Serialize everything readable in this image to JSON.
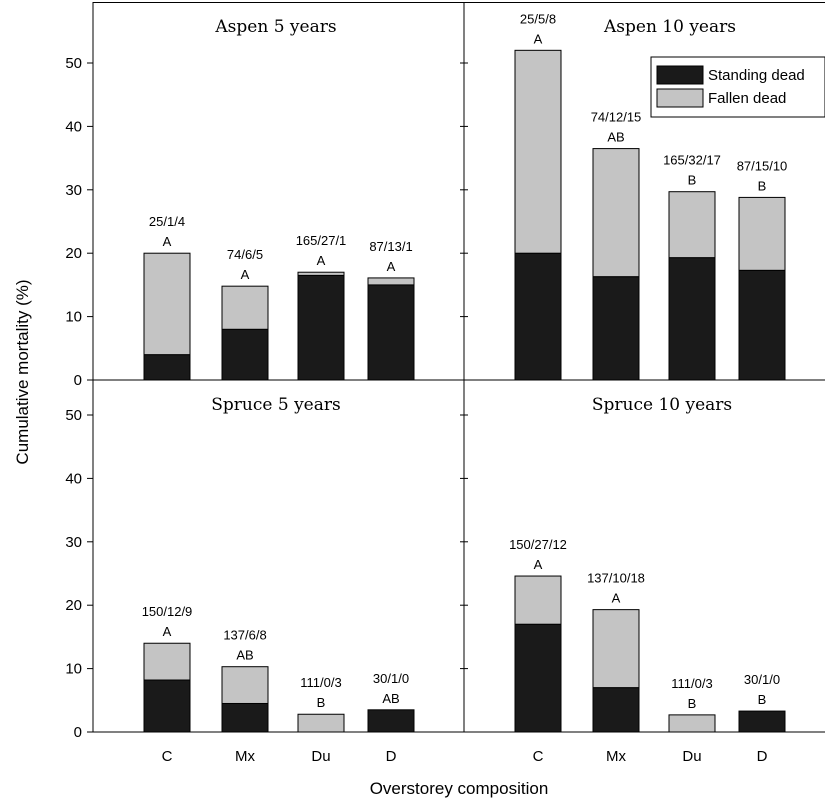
{
  "chart_data": {
    "type": "bar",
    "stacked": true,
    "xlabel": "Overstorey composition",
    "ylabel": "Cumulative mortality (%)",
    "categories": [
      "C",
      "Mx",
      "Du",
      "D"
    ],
    "ylim": [
      0,
      58
    ],
    "yticks": [
      0,
      10,
      20,
      30,
      40,
      50
    ],
    "grid": false,
    "legend": {
      "location": "top-right of Aspen 10 years panel",
      "entries": [
        {
          "name": "Standing dead",
          "color": "#1a1a1a"
        },
        {
          "name": "Fallen dead",
          "color": "#c4c4c4"
        }
      ]
    },
    "colors": {
      "standing": "#1a1a1a",
      "fallen": "#c4c4c4"
    },
    "panels": [
      {
        "title": "Aspen 5 years",
        "series": [
          {
            "name": "Standing dead",
            "values": [
              4,
              8,
              16.5,
              15
            ]
          },
          {
            "name": "Fallen dead",
            "values": [
              16,
              6.8,
              0.5,
              1.1
            ]
          }
        ],
        "annotations": [
          {
            "counts": "25/1/4",
            "group": "A"
          },
          {
            "counts": "74/6/5",
            "group": "A"
          },
          {
            "counts": "165/27/1",
            "group": "A"
          },
          {
            "counts": "87/13/1",
            "group": "A"
          }
        ]
      },
      {
        "title": "Aspen 10 years",
        "series": [
          {
            "name": "Standing dead",
            "values": [
              20,
              16.3,
              19.3,
              17.3
            ]
          },
          {
            "name": "Fallen dead",
            "values": [
              32,
              20.2,
              10.4,
              11.5
            ]
          }
        ],
        "annotations": [
          {
            "counts": "25/5/8",
            "group": "A"
          },
          {
            "counts": "74/12/15",
            "group": "AB"
          },
          {
            "counts": "165/32/17",
            "group": "B"
          },
          {
            "counts": "87/15/10",
            "group": "B"
          }
        ]
      },
      {
        "title": "Spruce 5 years",
        "series": [
          {
            "name": "Standing dead",
            "values": [
              8.2,
              4.5,
              0,
              3.5
            ]
          },
          {
            "name": "Fallen dead",
            "values": [
              5.8,
              5.8,
              2.8,
              0
            ]
          }
        ],
        "annotations": [
          {
            "counts": "150/12/9",
            "group": "A"
          },
          {
            "counts": "137/6/8",
            "group": "AB"
          },
          {
            "counts": "111/0/3",
            "group": "B"
          },
          {
            "counts": "30/1/0",
            "group": "AB"
          }
        ]
      },
      {
        "title": "Spruce 10 years",
        "series": [
          {
            "name": "Standing dead",
            "values": [
              17,
              7,
              0,
              3.3
            ]
          },
          {
            "name": "Fallen dead",
            "values": [
              7.6,
              12.3,
              2.7,
              0
            ]
          }
        ],
        "annotations": [
          {
            "counts": "150/27/12",
            "group": "A"
          },
          {
            "counts": "137/10/18",
            "group": "A"
          },
          {
            "counts": "111/0/3",
            "group": "B"
          },
          {
            "counts": "30/1/0",
            "group": "B"
          }
        ]
      }
    ]
  }
}
